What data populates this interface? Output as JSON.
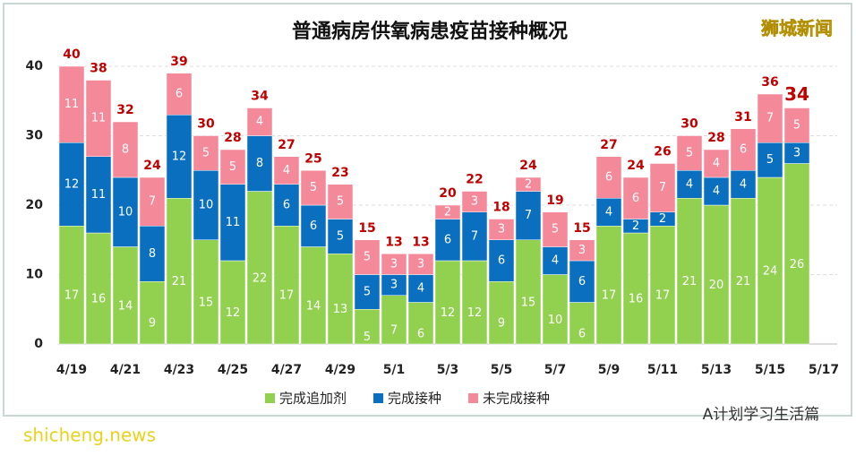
{
  "chart_data": {
    "type": "stacked_bar",
    "title": "普通病房供氧病患疫苗接种概况",
    "categories": [
      "4/19",
      null,
      "4/21",
      null,
      "4/23",
      null,
      "4/25",
      null,
      "4/27",
      null,
      "4/29",
      null,
      "5/1",
      null,
      "5/3",
      null,
      "5/5",
      null,
      "5/7",
      null,
      "5/9",
      null,
      "5/11",
      null,
      "5/13",
      null,
      "5/15",
      null,
      "5/17"
    ],
    "series": [
      {
        "name": "完成追加剂",
        "color": "#92d050",
        "values": [
          17,
          16,
          14,
          9,
          21,
          15,
          12,
          22,
          17,
          14,
          13,
          5,
          7,
          6,
          12,
          12,
          9,
          15,
          10,
          6,
          17,
          16,
          17,
          21,
          20,
          21,
          24,
          26,
          null
        ]
      },
      {
        "name": "完成接种",
        "color": "#0b6fc0",
        "values": [
          12,
          11,
          10,
          8,
          12,
          10,
          11,
          8,
          6,
          6,
          5,
          5,
          3,
          4,
          6,
          7,
          6,
          7,
          4,
          6,
          4,
          2,
          2,
          4,
          4,
          4,
          5,
          3,
          null
        ]
      },
      {
        "name": "未完成接种",
        "color": "#f4899a",
        "values": [
          11,
          11,
          8,
          7,
          6,
          5,
          5,
          4,
          4,
          5,
          5,
          5,
          3,
          3,
          2,
          3,
          3,
          2,
          5,
          3,
          6,
          6,
          7,
          5,
          4,
          6,
          7,
          5,
          null
        ]
      }
    ],
    "totals": [
      40,
      38,
      32,
      24,
      39,
      30,
      28,
      34,
      27,
      25,
      23,
      15,
      13,
      13,
      20,
      22,
      18,
      24,
      19,
      15,
      27,
      24,
      26,
      30,
      28,
      31,
      36,
      34,
      null
    ],
    "totals_color": "#c00000",
    "ylim": [
      0,
      40
    ],
    "yticks": [
      0,
      10,
      20,
      30,
      40
    ],
    "grid": true
  },
  "watermarks": {
    "top_right": "狮城新闻",
    "bottom_right": "A计划学习生活篇",
    "bottom_left": "shicheng.news"
  }
}
